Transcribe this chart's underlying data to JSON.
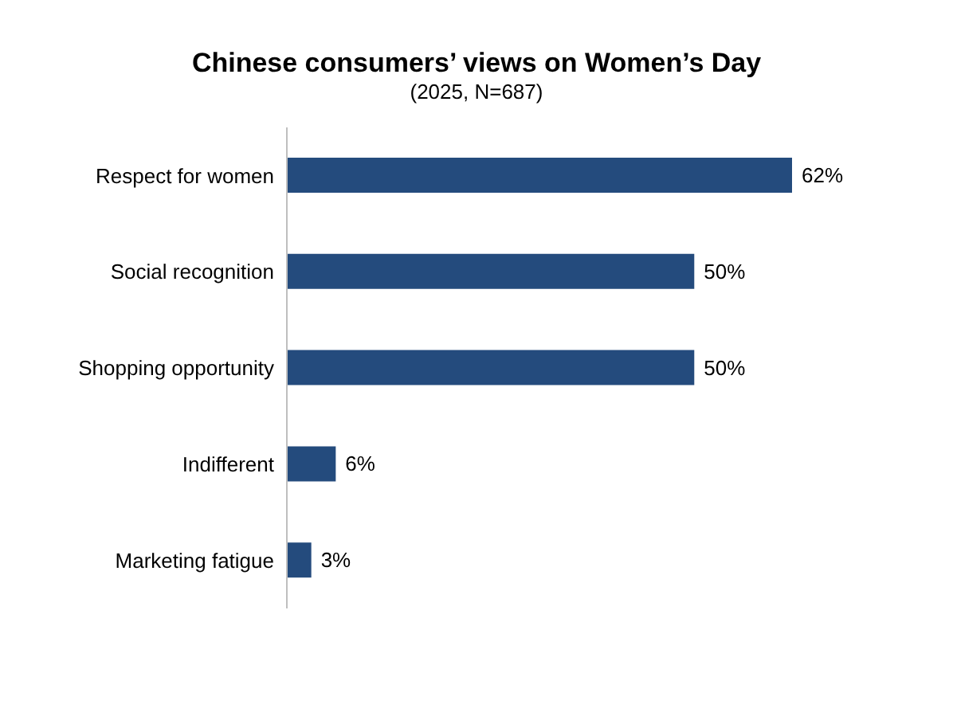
{
  "chart_data": {
    "type": "bar",
    "orientation": "horizontal",
    "title": "Chinese consumers’ views on Women’s Day",
    "subtitle": "(2025, N=687)",
    "categories": [
      "Respect for women",
      "Social recognition",
      "Shopping opportunity",
      "Indifferent",
      "Marketing fatigue"
    ],
    "values": [
      62,
      50,
      50,
      6,
      3
    ],
    "value_labels": [
      "62%",
      "50%",
      "50%",
      "6%",
      "3%"
    ],
    "color": "#244b7d"
  }
}
